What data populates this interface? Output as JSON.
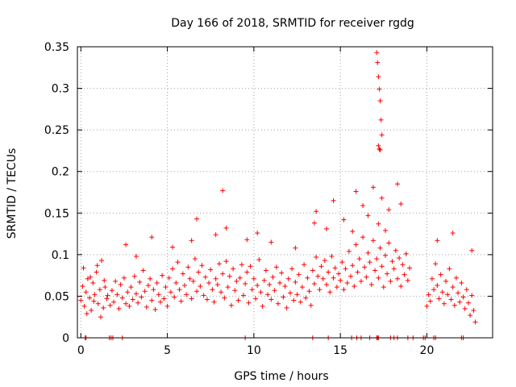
{
  "chart_data": {
    "type": "scatter",
    "title": "Day 166 of 2018, SRMTID for receiver rgdg",
    "xlabel": "GPS time / hours",
    "ylabel": "SRMTID / TECUs",
    "xlim": [
      -0.2,
      23.8
    ],
    "ylim": [
      0,
      0.35
    ],
    "xticks": [
      0,
      5,
      10,
      15,
      20
    ],
    "xtick_labels": [
      "0",
      "5",
      "10",
      "15",
      "20"
    ],
    "yticks": [
      0,
      0.05,
      0.1,
      0.15,
      0.2,
      0.25,
      0.3,
      0.35
    ],
    "ytick_labels": [
      "0",
      "0.05",
      "0.1",
      "0.15",
      "0.2",
      "0.25",
      "0.3",
      "0.35"
    ],
    "grid": true,
    "marker_color": "#ff0000",
    "series": [
      {
        "name": "SRMTID",
        "x": [
          0.0,
          0.1,
          0.2,
          0.3,
          0.4,
          0.5,
          0.6,
          0.7,
          0.8,
          0.9,
          1.0,
          1.1,
          1.2,
          1.3,
          1.4,
          1.5,
          0.15,
          0.35,
          0.55,
          0.75,
          0.95,
          1.15,
          1.35,
          1.55,
          1.7,
          1.8,
          1.9,
          2.0,
          2.1,
          2.2,
          2.3,
          2.4,
          2.5,
          2.6,
          2.7,
          2.8,
          2.9,
          3.0,
          3.1,
          3.2,
          3.3,
          3.4,
          3.5,
          3.6,
          3.7,
          3.8,
          3.9,
          4.0,
          4.1,
          4.2,
          4.3,
          4.4,
          4.5,
          4.6,
          4.7,
          4.8,
          4.9,
          5.0,
          5.1,
          5.2,
          5.3,
          5.4,
          5.5,
          5.6,
          5.7,
          5.8,
          5.9,
          6.0,
          6.1,
          6.2,
          6.3,
          6.4,
          6.5,
          6.6,
          6.7,
          6.8,
          6.9,
          7.0,
          7.1,
          7.2,
          7.3,
          7.4,
          7.5,
          7.6,
          7.7,
          7.8,
          7.9,
          8.0,
          8.1,
          8.2,
          8.3,
          8.4,
          8.5,
          8.6,
          8.7,
          8.8,
          8.9,
          9.0,
          9.1,
          9.2,
          9.3,
          9.4,
          9.5,
          9.6,
          9.7,
          9.8,
          9.9,
          10.0,
          10.1,
          10.2,
          10.3,
          10.4,
          10.5,
          10.6,
          10.7,
          10.8,
          10.9,
          11.0,
          11.1,
          11.2,
          11.3,
          11.4,
          11.5,
          11.6,
          11.7,
          11.8,
          11.9,
          12.0,
          12.1,
          12.2,
          12.3,
          12.4,
          12.5,
          12.6,
          12.7,
          12.8,
          12.9,
          13.0,
          13.1,
          13.2,
          13.3,
          13.4,
          13.5,
          13.6,
          13.7,
          13.8,
          13.9,
          14.0,
          14.1,
          14.2,
          14.3,
          14.4,
          14.5,
          14.6,
          14.7,
          14.8,
          14.9,
          15.0,
          15.1,
          15.2,
          15.3,
          15.4,
          15.5,
          15.6,
          15.7,
          15.8,
          15.9,
          16.0,
          16.1,
          16.2,
          16.3,
          16.4,
          16.5,
          16.6,
          16.7,
          16.8,
          16.9,
          17.0,
          17.1,
          17.2,
          17.3,
          17.4,
          17.5,
          17.6,
          17.7,
          17.8,
          17.9,
          18.0,
          18.1,
          18.2,
          18.3,
          18.4,
          18.5,
          18.6,
          18.7,
          18.8,
          18.9,
          19.0,
          20.0,
          20.1,
          20.2,
          20.3,
          20.4,
          20.5,
          20.6,
          20.7,
          20.8,
          20.9,
          21.0,
          21.1,
          21.2,
          21.3,
          21.4,
          21.5,
          21.6,
          21.7,
          21.8,
          21.9,
          22.0,
          22.1,
          22.2,
          22.3,
          22.4,
          22.5,
          22.6,
          22.7,
          22.8,
          2.6,
          3.2,
          4.1,
          5.3,
          6.4,
          6.7,
          7.8,
          8.2,
          8.4,
          9.6,
          10.2,
          11.0,
          12.4,
          13.5,
          13.6,
          14.2,
          14.6,
          15.2,
          15.7,
          15.9,
          16.3,
          16.6,
          16.9,
          17.2,
          17.4,
          17.6,
          17.8,
          18.3,
          18.5,
          20.6,
          21.5,
          22.6,
          17.1,
          17.15,
          17.2,
          17.25,
          17.3,
          17.35,
          17.4,
          17.2,
          17.25,
          17.3,
          0.25,
          0.3,
          1.65,
          1.75,
          1.85,
          2.4,
          9.5,
          13.4,
          14.3,
          15.65,
          15.95,
          16.2,
          16.7,
          17.1,
          17.15,
          17.2,
          17.9,
          18.1,
          18.3,
          18.9,
          19.2,
          19.8,
          19.9,
          20.4,
          20.5,
          22.0,
          22.1
        ],
        "y": [
          0.045,
          0.062,
          0.038,
          0.055,
          0.071,
          0.048,
          0.033,
          0.066,
          0.052,
          0.079,
          0.041,
          0.058,
          0.093,
          0.036,
          0.061,
          0.047,
          0.084,
          0.029,
          0.073,
          0.044,
          0.087,
          0.025,
          0.069,
          0.051,
          0.039,
          0.057,
          0.043,
          0.068,
          0.052,
          0.035,
          0.064,
          0.048,
          0.072,
          0.041,
          0.055,
          0.038,
          0.061,
          0.046,
          0.074,
          0.053,
          0.042,
          0.067,
          0.049,
          0.081,
          0.056,
          0.037,
          0.063,
          0.071,
          0.045,
          0.058,
          0.034,
          0.066,
          0.052,
          0.043,
          0.075,
          0.047,
          0.061,
          0.038,
          0.072,
          0.055,
          0.083,
          0.049,
          0.066,
          0.091,
          0.058,
          0.044,
          0.077,
          0.063,
          0.052,
          0.085,
          0.071,
          0.047,
          0.068,
          0.095,
          0.056,
          0.079,
          0.062,
          0.087,
          0.051,
          0.073,
          0.046,
          0.066,
          0.082,
          0.058,
          0.043,
          0.071,
          0.064,
          0.089,
          0.055,
          0.077,
          0.048,
          0.092,
          0.061,
          0.074,
          0.039,
          0.083,
          0.057,
          0.068,
          0.045,
          0.072,
          0.088,
          0.051,
          0.065,
          0.079,
          0.042,
          0.086,
          0.058,
          0.071,
          0.047,
          0.063,
          0.094,
          0.055,
          0.038,
          0.069,
          0.081,
          0.052,
          0.064,
          0.046,
          0.073,
          0.057,
          0.085,
          0.041,
          0.066,
          0.078,
          0.049,
          0.062,
          0.036,
          0.071,
          0.054,
          0.083,
          0.045,
          0.067,
          0.052,
          0.076,
          0.043,
          0.061,
          0.088,
          0.048,
          0.072,
          0.056,
          0.039,
          0.081,
          0.065,
          0.097,
          0.074,
          0.058,
          0.086,
          0.071,
          0.093,
          0.064,
          0.079,
          0.055,
          0.098,
          0.072,
          0.084,
          0.061,
          0.077,
          0.069,
          0.091,
          0.058,
          0.083,
          0.066,
          0.104,
          0.074,
          0.087,
          0.062,
          0.112,
          0.079,
          0.095,
          0.068,
          0.121,
          0.085,
          0.073,
          0.102,
          0.091,
          0.064,
          0.117,
          0.081,
          0.095,
          0.072,
          0.108,
          0.086,
          0.061,
          0.099,
          0.077,
          0.114,
          0.068,
          0.092,
          0.083,
          0.105,
          0.071,
          0.096,
          0.062,
          0.088,
          0.076,
          0.101,
          0.069,
          0.084,
          0.038,
          0.052,
          0.044,
          0.071,
          0.058,
          0.089,
          0.063,
          0.047,
          0.076,
          0.055,
          0.041,
          0.068,
          0.052,
          0.083,
          0.046,
          0.061,
          0.039,
          0.072,
          0.054,
          0.043,
          0.066,
          0.049,
          0.035,
          0.058,
          0.042,
          0.027,
          0.051,
          0.033,
          0.019,
          0.112,
          0.098,
          0.121,
          0.109,
          0.117,
          0.143,
          0.124,
          0.177,
          0.132,
          0.118,
          0.126,
          0.115,
          0.108,
          0.138,
          0.152,
          0.131,
          0.165,
          0.142,
          0.128,
          0.176,
          0.159,
          0.147,
          0.181,
          0.137,
          0.168,
          0.129,
          0.154,
          0.185,
          0.161,
          0.117,
          0.126,
          0.105,
          0.343,
          0.331,
          0.314,
          0.299,
          0.285,
          0.262,
          0.244,
          0.231,
          0.227,
          0.226,
          0.0,
          0.0,
          0.0,
          0.0,
          0.0,
          0.0,
          0.0,
          0.0,
          0.0,
          0.0,
          0.0,
          0.0,
          0.0,
          0.0,
          0.0,
          0.0,
          0.0,
          0.0,
          0.0,
          0.0,
          0.0,
          0.0,
          0.0,
          0.0,
          0.0,
          0.0,
          0.0
        ]
      }
    ]
  }
}
